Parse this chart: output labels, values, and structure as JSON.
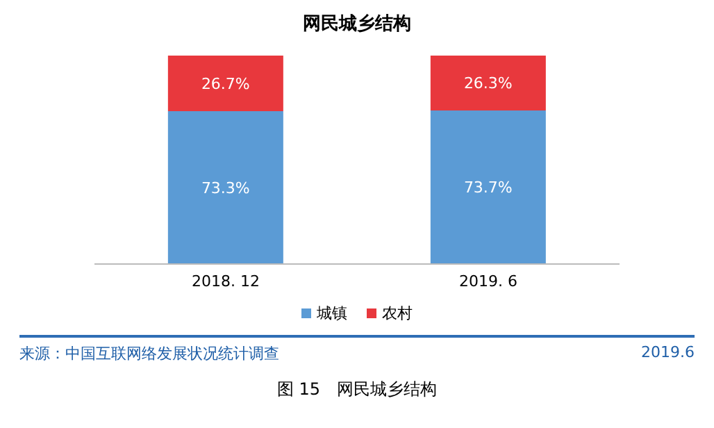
{
  "chart_data": {
    "type": "bar",
    "title": "网民城乡结构",
    "categories": [
      "2018. 12",
      "2019. 6"
    ],
    "stacked": true,
    "legend": "bottom",
    "grid": false,
    "series": [
      {
        "name": "城镇",
        "color": "#5b9bd5",
        "values": [
          73.3,
          73.7
        ],
        "value_labels": [
          "73.3%",
          "73.7%"
        ]
      },
      {
        "name": "农村",
        "color": "#e8383d",
        "values": [
          26.7,
          26.3
        ],
        "value_labels": [
          "26.7%",
          "26.3%"
        ]
      }
    ],
    "annotations": [
      "来源：中国互联网络发展状况统计调查",
      "2019.6",
      "图 15　网民城乡结构"
    ]
  }
}
